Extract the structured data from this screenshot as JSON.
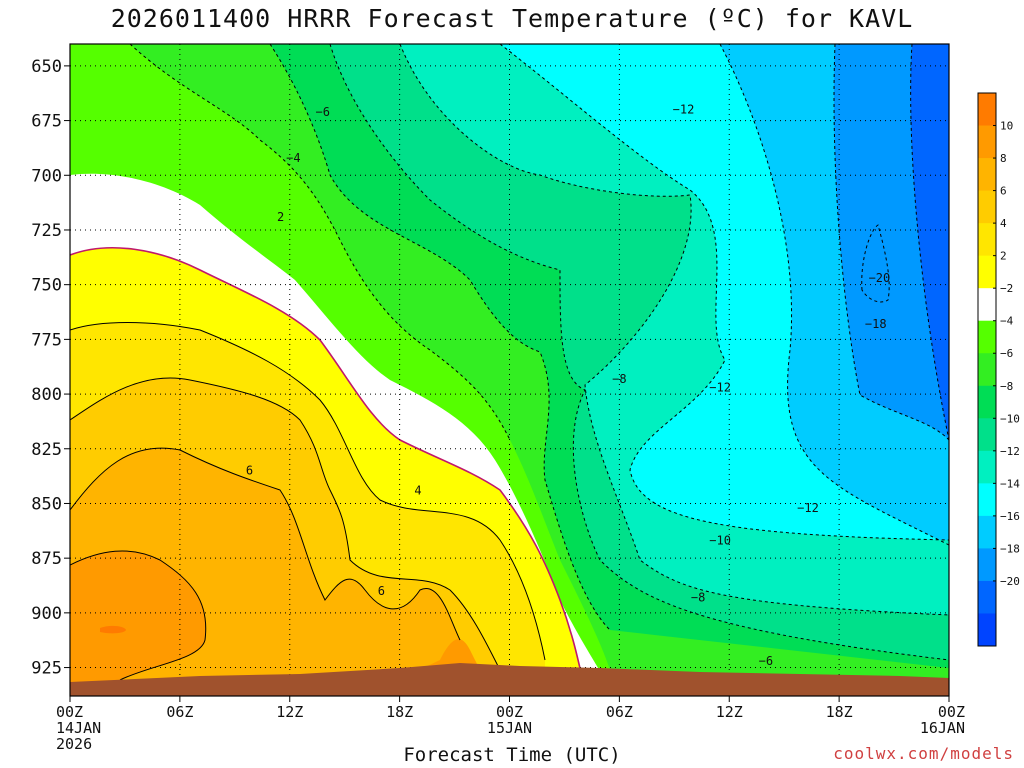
{
  "chart_data": {
    "type": "heatmap",
    "title": "2026011400 HRRR Forecast Temperature (ºC) for KAVL",
    "xlabel": "Forecast Time (UTC)",
    "credit": "coolwx.com/models",
    "y_ticks": [
      650,
      675,
      700,
      725,
      750,
      775,
      800,
      825,
      850,
      875,
      900,
      925
    ],
    "ylim": [
      938,
      640
    ],
    "x_ticks": [
      {
        "line1": "00Z",
        "line2": "14JAN",
        "line3": "2026"
      },
      {
        "line1": "06Z"
      },
      {
        "line1": "12Z"
      },
      {
        "line1": "18Z"
      },
      {
        "line1": "00Z",
        "line2": "15JAN"
      },
      {
        "line1": "06Z"
      },
      {
        "line1": "12Z"
      },
      {
        "line1": "18Z"
      },
      {
        "line1": "00Z",
        "line2": "16JAN"
      }
    ],
    "x_hours": [
      0,
      6,
      12,
      18,
      24,
      30,
      36,
      42,
      48
    ],
    "colorbar": {
      "labels": [
        "10",
        "8",
        "6",
        "4",
        "2",
        "−2",
        "−4",
        "−6",
        "−8",
        "−10",
        "−12",
        "−14",
        "−16",
        "−18",
        "−20"
      ],
      "colors": [
        "#ff7b00",
        "#ff9a00",
        "#ffb400",
        "#ffcc00",
        "#ffe600",
        "#ffff00",
        "#ffffff",
        "#55ff00",
        "#33ee22",
        "#00dd55",
        "#00e08a",
        "#00f0c0",
        "#00ffff",
        "#00ccff",
        "#0099ff",
        "#0066ff",
        "#0044ff"
      ]
    },
    "contour_labels": [
      {
        "text": "−6",
        "hour": 13.8,
        "p": 671
      },
      {
        "text": "−4",
        "hour": 12.2,
        "p": 692
      },
      {
        "text": "2",
        "hour": 11.5,
        "p": 719
      },
      {
        "text": "6",
        "hour": 9.8,
        "p": 835
      },
      {
        "text": "4",
        "hour": 19.0,
        "p": 844
      },
      {
        "text": "6",
        "hour": 17.0,
        "p": 890
      },
      {
        "text": "−12",
        "hour": 33.5,
        "p": 670
      },
      {
        "text": "−8",
        "hour": 30.0,
        "p": 793
      },
      {
        "text": "−12",
        "hour": 35.5,
        "p": 797
      },
      {
        "text": "−20",
        "hour": 44.2,
        "p": 747
      },
      {
        "text": "−18",
        "hour": 44.0,
        "p": 768
      },
      {
        "text": "−12",
        "hour": 40.3,
        "p": 852
      },
      {
        "text": "−10",
        "hour": 35.5,
        "p": 867
      },
      {
        "text": "−8",
        "hour": 34.3,
        "p": 893
      },
      {
        "text": "−6",
        "hour": 38.0,
        "p": 922
      }
    ]
  }
}
